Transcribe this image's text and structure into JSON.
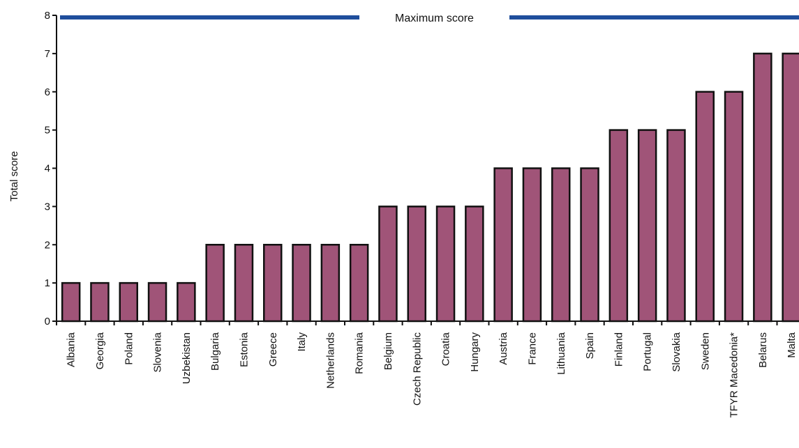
{
  "chart_data": {
    "type": "bar",
    "title": "",
    "xlabel": "",
    "ylabel": "Total score",
    "ylim": [
      0,
      8
    ],
    "yticks": [
      0,
      1,
      2,
      3,
      4,
      5,
      6,
      7,
      8
    ],
    "categories": [
      "Albania",
      "Georgia",
      "Poland",
      "Slovenia",
      "Uzbekistan",
      "Bulgaria",
      "Estonia",
      "Greece",
      "Italy",
      "Netherlands",
      "Romania",
      "Belgium",
      "Czech Republic",
      "Croatia",
      "Hungary",
      "Austria",
      "France",
      "Lithuania",
      "Spain",
      "Finland",
      "Portugal",
      "Slovakia",
      "Sweden",
      "TFYR Macedonia*",
      "Belarus",
      "Malta"
    ],
    "values": [
      1,
      1,
      1,
      1,
      1,
      2,
      2,
      2,
      2,
      2,
      2,
      3,
      3,
      3,
      3,
      4,
      4,
      4,
      4,
      5,
      5,
      5,
      6,
      6,
      7,
      7
    ],
    "reference_line": {
      "label": "Maximum score",
      "value": 8,
      "color": "#1f4e9c"
    },
    "bar_color": "#a05478",
    "grid": false,
    "legend": "none"
  }
}
